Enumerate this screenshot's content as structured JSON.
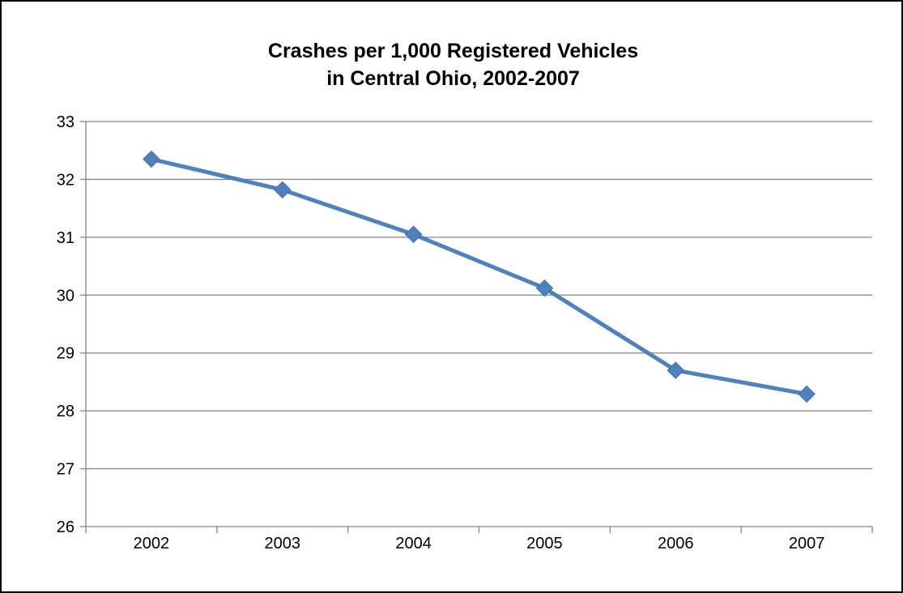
{
  "chart_data": {
    "type": "line",
    "title_lines": [
      "Crashes per 1,000 Registered Vehicles",
      "in Central Ohio, 2002-2007"
    ],
    "categories": [
      "2002",
      "2003",
      "2004",
      "2005",
      "2006",
      "2007"
    ],
    "series": [
      {
        "values": [
          32.35,
          31.82,
          31.05,
          30.12,
          28.7,
          28.29
        ]
      }
    ],
    "ylim": [
      26,
      33
    ],
    "yticks": [
      "26",
      "27",
      "28",
      "29",
      "30",
      "31",
      "32",
      "33"
    ],
    "grid": "horizontal",
    "legend": "none",
    "colors": {
      "series": "#4F81BD",
      "grid": "#868686",
      "axis": "#868686"
    }
  }
}
